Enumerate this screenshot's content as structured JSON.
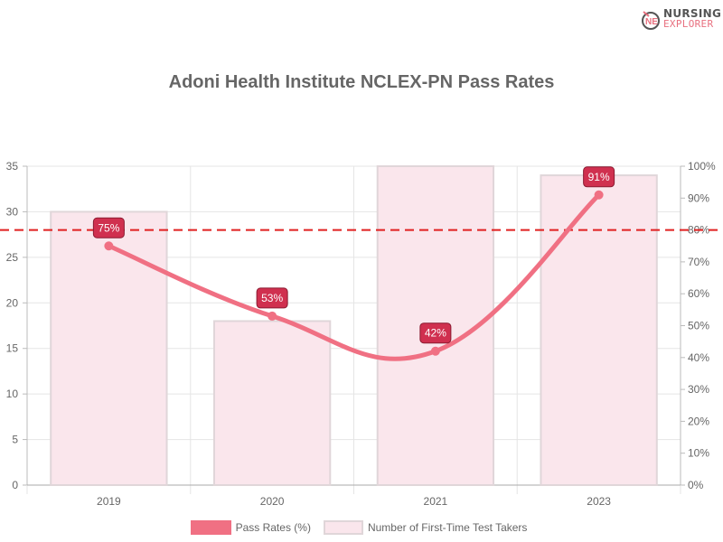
{
  "logo": {
    "line1": "NURSING",
    "line2": "EXPLORER",
    "mark": "NE"
  },
  "chart_data": {
    "type": "bar+line",
    "title": "Adoni Health Institute NCLEX-PN Pass Rates",
    "categories": [
      "2019",
      "2020",
      "2021",
      "2023"
    ],
    "series": [
      {
        "name": "Pass Rates (%)",
        "type": "line",
        "axis": "right",
        "values": [
          75,
          53,
          42,
          91
        ],
        "labels": [
          "75%",
          "53%",
          "42%",
          "91%"
        ],
        "color": "#f07083"
      },
      {
        "name": "Number of First-Time Test Takers",
        "type": "bar",
        "axis": "left",
        "values": [
          30,
          18,
          35,
          34
        ],
        "color": "#fae6ec"
      }
    ],
    "left_axis": {
      "min": 0,
      "max": 35,
      "ticks": [
        "0",
        "5",
        "10",
        "15",
        "20",
        "25",
        "30",
        "35"
      ]
    },
    "right_axis": {
      "min": 0,
      "max": 100,
      "ticks": [
        "0%",
        "10%",
        "20%",
        "30%",
        "40%",
        "50%",
        "60%",
        "70%",
        "80%",
        "90%",
        "100%"
      ]
    },
    "annotations": [
      {
        "type": "threshold-line",
        "value": 80,
        "axis": "right",
        "style": "dashed",
        "color": "#e02020"
      }
    ],
    "grid": true,
    "legend_position": "bottom"
  },
  "legend": {
    "items": [
      "Pass Rates (%)",
      "Number of First-Time Test Takers"
    ]
  }
}
